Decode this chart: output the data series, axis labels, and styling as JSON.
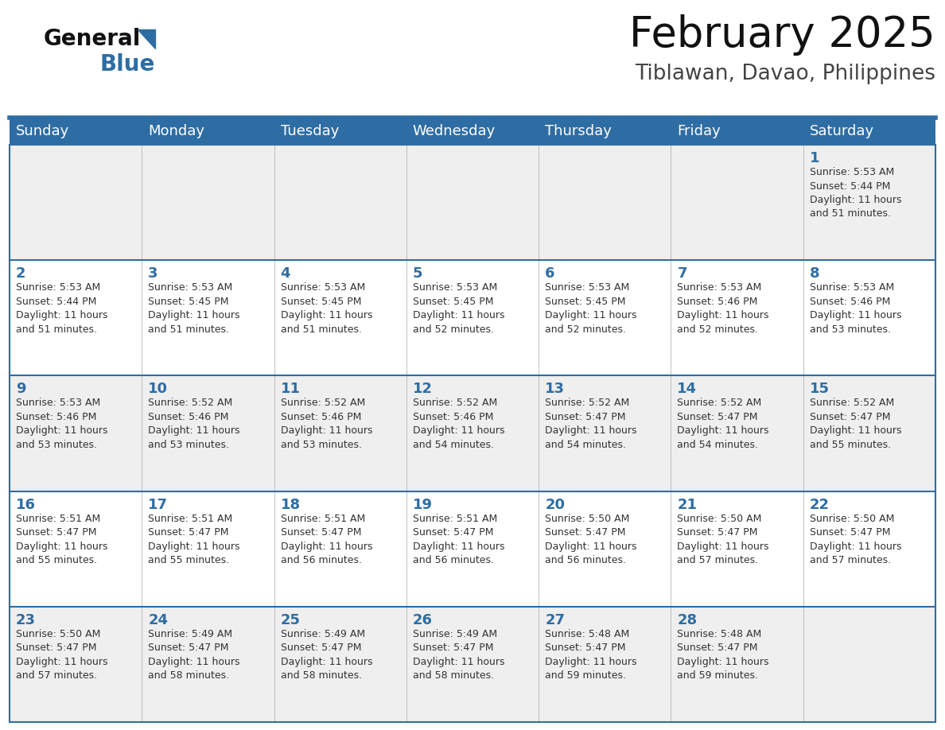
{
  "title": "February 2025",
  "subtitle": "Tiblawan, Davao, Philippines",
  "days_of_week": [
    "Sunday",
    "Monday",
    "Tuesday",
    "Wednesday",
    "Thursday",
    "Friday",
    "Saturday"
  ],
  "header_bg_color": "#2E6DA4",
  "header_text_color": "#FFFFFF",
  "cell_bg_odd": "#EFEFEF",
  "cell_bg_even": "#FFFFFF",
  "day_number_color": "#2E6DA4",
  "text_color": "#333333",
  "line_color": "#2E6DA4",
  "grid_line_color": "#2E6DA4",
  "calendar_data": [
    [
      {
        "day": null,
        "info": null
      },
      {
        "day": null,
        "info": null
      },
      {
        "day": null,
        "info": null
      },
      {
        "day": null,
        "info": null
      },
      {
        "day": null,
        "info": null
      },
      {
        "day": null,
        "info": null
      },
      {
        "day": 1,
        "info": "Sunrise: 5:53 AM\nSunset: 5:44 PM\nDaylight: 11 hours\nand 51 minutes."
      }
    ],
    [
      {
        "day": 2,
        "info": "Sunrise: 5:53 AM\nSunset: 5:44 PM\nDaylight: 11 hours\nand 51 minutes."
      },
      {
        "day": 3,
        "info": "Sunrise: 5:53 AM\nSunset: 5:45 PM\nDaylight: 11 hours\nand 51 minutes."
      },
      {
        "day": 4,
        "info": "Sunrise: 5:53 AM\nSunset: 5:45 PM\nDaylight: 11 hours\nand 51 minutes."
      },
      {
        "day": 5,
        "info": "Sunrise: 5:53 AM\nSunset: 5:45 PM\nDaylight: 11 hours\nand 52 minutes."
      },
      {
        "day": 6,
        "info": "Sunrise: 5:53 AM\nSunset: 5:45 PM\nDaylight: 11 hours\nand 52 minutes."
      },
      {
        "day": 7,
        "info": "Sunrise: 5:53 AM\nSunset: 5:46 PM\nDaylight: 11 hours\nand 52 minutes."
      },
      {
        "day": 8,
        "info": "Sunrise: 5:53 AM\nSunset: 5:46 PM\nDaylight: 11 hours\nand 53 minutes."
      }
    ],
    [
      {
        "day": 9,
        "info": "Sunrise: 5:53 AM\nSunset: 5:46 PM\nDaylight: 11 hours\nand 53 minutes."
      },
      {
        "day": 10,
        "info": "Sunrise: 5:52 AM\nSunset: 5:46 PM\nDaylight: 11 hours\nand 53 minutes."
      },
      {
        "day": 11,
        "info": "Sunrise: 5:52 AM\nSunset: 5:46 PM\nDaylight: 11 hours\nand 53 minutes."
      },
      {
        "day": 12,
        "info": "Sunrise: 5:52 AM\nSunset: 5:46 PM\nDaylight: 11 hours\nand 54 minutes."
      },
      {
        "day": 13,
        "info": "Sunrise: 5:52 AM\nSunset: 5:47 PM\nDaylight: 11 hours\nand 54 minutes."
      },
      {
        "day": 14,
        "info": "Sunrise: 5:52 AM\nSunset: 5:47 PM\nDaylight: 11 hours\nand 54 minutes."
      },
      {
        "day": 15,
        "info": "Sunrise: 5:52 AM\nSunset: 5:47 PM\nDaylight: 11 hours\nand 55 minutes."
      }
    ],
    [
      {
        "day": 16,
        "info": "Sunrise: 5:51 AM\nSunset: 5:47 PM\nDaylight: 11 hours\nand 55 minutes."
      },
      {
        "day": 17,
        "info": "Sunrise: 5:51 AM\nSunset: 5:47 PM\nDaylight: 11 hours\nand 55 minutes."
      },
      {
        "day": 18,
        "info": "Sunrise: 5:51 AM\nSunset: 5:47 PM\nDaylight: 11 hours\nand 56 minutes."
      },
      {
        "day": 19,
        "info": "Sunrise: 5:51 AM\nSunset: 5:47 PM\nDaylight: 11 hours\nand 56 minutes."
      },
      {
        "day": 20,
        "info": "Sunrise: 5:50 AM\nSunset: 5:47 PM\nDaylight: 11 hours\nand 56 minutes."
      },
      {
        "day": 21,
        "info": "Sunrise: 5:50 AM\nSunset: 5:47 PM\nDaylight: 11 hours\nand 57 minutes."
      },
      {
        "day": 22,
        "info": "Sunrise: 5:50 AM\nSunset: 5:47 PM\nDaylight: 11 hours\nand 57 minutes."
      }
    ],
    [
      {
        "day": 23,
        "info": "Sunrise: 5:50 AM\nSunset: 5:47 PM\nDaylight: 11 hours\nand 57 minutes."
      },
      {
        "day": 24,
        "info": "Sunrise: 5:49 AM\nSunset: 5:47 PM\nDaylight: 11 hours\nand 58 minutes."
      },
      {
        "day": 25,
        "info": "Sunrise: 5:49 AM\nSunset: 5:47 PM\nDaylight: 11 hours\nand 58 minutes."
      },
      {
        "day": 26,
        "info": "Sunrise: 5:49 AM\nSunset: 5:47 PM\nDaylight: 11 hours\nand 58 minutes."
      },
      {
        "day": 27,
        "info": "Sunrise: 5:48 AM\nSunset: 5:47 PM\nDaylight: 11 hours\nand 59 minutes."
      },
      {
        "day": 28,
        "info": "Sunrise: 5:48 AM\nSunset: 5:47 PM\nDaylight: 11 hours\nand 59 minutes."
      },
      {
        "day": null,
        "info": null
      }
    ]
  ]
}
